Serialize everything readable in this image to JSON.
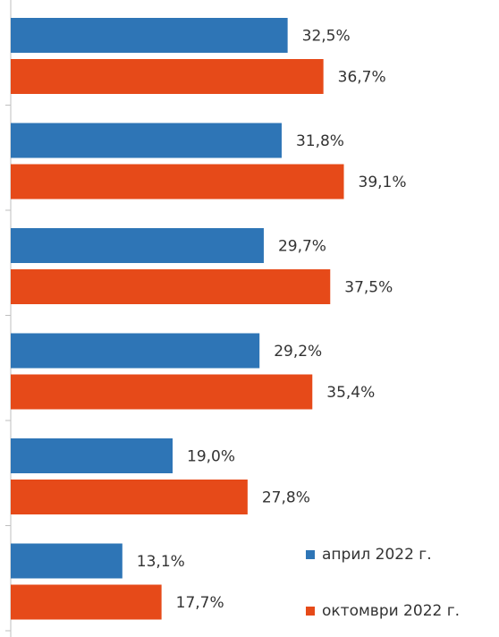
{
  "chart_data": {
    "type": "bar",
    "orientation": "horizontal",
    "categories": [
      "",
      "",
      "",
      "",
      "",
      ""
    ],
    "series": [
      {
        "name": "април 2022 г.",
        "color": "#2e75b6",
        "values": [
          32.5,
          31.8,
          29.7,
          29.2,
          19.0,
          13.1
        ],
        "labels": [
          "32,5%",
          "31,8%",
          "29,7%",
          "29,2%",
          "19,0%",
          "13,1%"
        ]
      },
      {
        "name": "октомври 2022 г.",
        "color": "#e64a19",
        "values": [
          36.7,
          39.1,
          37.5,
          35.4,
          27.8,
          17.7
        ],
        "labels": [
          "36,7%",
          "39,1%",
          "37,5%",
          "35,4%",
          "27,8%",
          "17,7%"
        ]
      }
    ],
    "xlim": [
      0,
      55
    ],
    "grid": false,
    "legend_position": "bottom-right"
  }
}
